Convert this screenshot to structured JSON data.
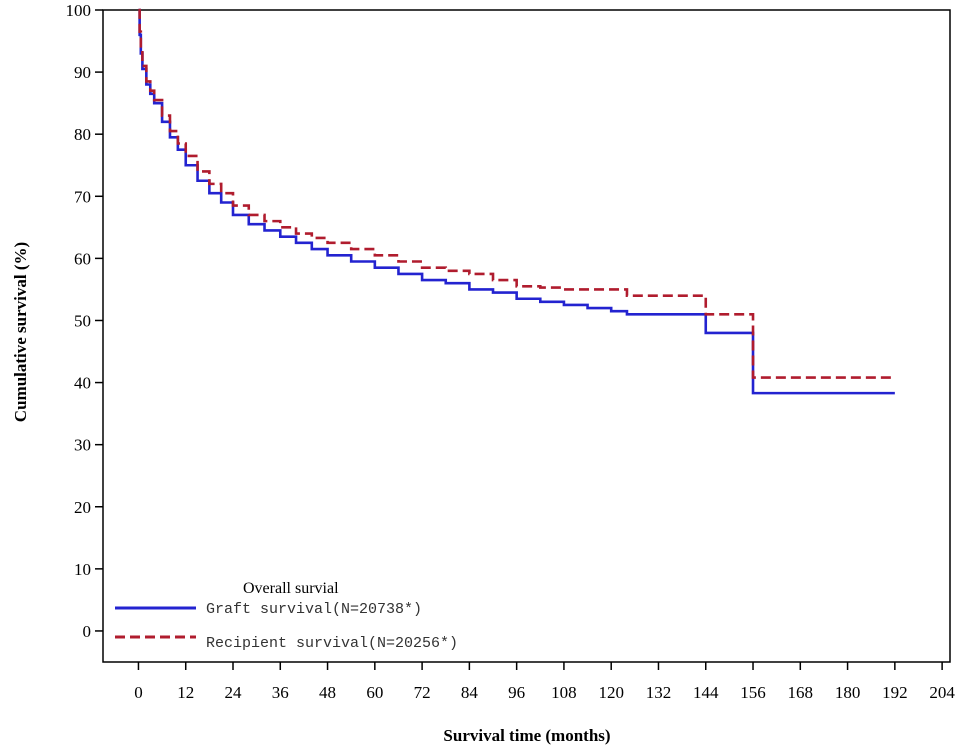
{
  "chart_data": {
    "type": "line",
    "xlabel": "Survival time (months)",
    "ylabel": "Cumulative survival (%)",
    "xlim": [
      -9,
      206
    ],
    "ylim": [
      -5,
      100
    ],
    "xticks": [
      0,
      12,
      24,
      36,
      48,
      60,
      72,
      84,
      96,
      108,
      120,
      132,
      144,
      156,
      168,
      180,
      192,
      204
    ],
    "yticks": [
      0,
      10,
      20,
      30,
      40,
      50,
      60,
      70,
      80,
      90,
      100
    ],
    "grid": false,
    "legend": {
      "title": "Overall survial",
      "placement": "bottom-left"
    },
    "series": [
      {
        "name": "Graft survival(N=20738*)",
        "color": "#2323d0",
        "dash": "solid",
        "step": true,
        "points": [
          [
            0,
            100
          ],
          [
            0.3,
            96
          ],
          [
            0.6,
            93
          ],
          [
            1,
            90.5
          ],
          [
            2,
            88
          ],
          [
            3,
            86.5
          ],
          [
            4,
            85
          ],
          [
            6,
            82
          ],
          [
            8,
            79.5
          ],
          [
            10,
            77.5
          ],
          [
            12,
            75
          ],
          [
            15,
            72.5
          ],
          [
            18,
            70.5
          ],
          [
            21,
            69
          ],
          [
            24,
            67
          ],
          [
            28,
            65.5
          ],
          [
            32,
            64.5
          ],
          [
            36,
            63.5
          ],
          [
            40,
            62.5
          ],
          [
            44,
            61.5
          ],
          [
            48,
            60.5
          ],
          [
            54,
            59.5
          ],
          [
            60,
            58.5
          ],
          [
            66,
            57.5
          ],
          [
            72,
            56.5
          ],
          [
            78,
            56
          ],
          [
            84,
            55
          ],
          [
            90,
            54.5
          ],
          [
            96,
            53.5
          ],
          [
            102,
            53
          ],
          [
            108,
            52.5
          ],
          [
            114,
            52
          ],
          [
            120,
            51.5
          ],
          [
            124,
            51
          ],
          [
            144,
            48
          ],
          [
            156,
            38.3
          ],
          [
            192,
            38.3
          ]
        ]
      },
      {
        "name": "Recipient survival(N=20256*)",
        "color": "#b01c2e",
        "dash": "dashed",
        "step": true,
        "points": [
          [
            0,
            100
          ],
          [
            0.3,
            96.5
          ],
          [
            0.6,
            93.5
          ],
          [
            1,
            91
          ],
          [
            2,
            88.5
          ],
          [
            3,
            87
          ],
          [
            4,
            85.5
          ],
          [
            6,
            83
          ],
          [
            8,
            80.5
          ],
          [
            10,
            78.5
          ],
          [
            12,
            76.5
          ],
          [
            15,
            74
          ],
          [
            18,
            72
          ],
          [
            21,
            70.5
          ],
          [
            24,
            68.5
          ],
          [
            28,
            67
          ],
          [
            32,
            66
          ],
          [
            36,
            65
          ],
          [
            40,
            64
          ],
          [
            44,
            63.3
          ],
          [
            48,
            62.5
          ],
          [
            54,
            61.5
          ],
          [
            60,
            60.5
          ],
          [
            66,
            59.5
          ],
          [
            72,
            58.5
          ],
          [
            78,
            58
          ],
          [
            84,
            57.5
          ],
          [
            90,
            56.5
          ],
          [
            96,
            55.5
          ],
          [
            102,
            55.3
          ],
          [
            108,
            55
          ],
          [
            120,
            55
          ],
          [
            124,
            54
          ],
          [
            144,
            51
          ],
          [
            156,
            40.8
          ],
          [
            192,
            40.8
          ]
        ]
      }
    ]
  }
}
